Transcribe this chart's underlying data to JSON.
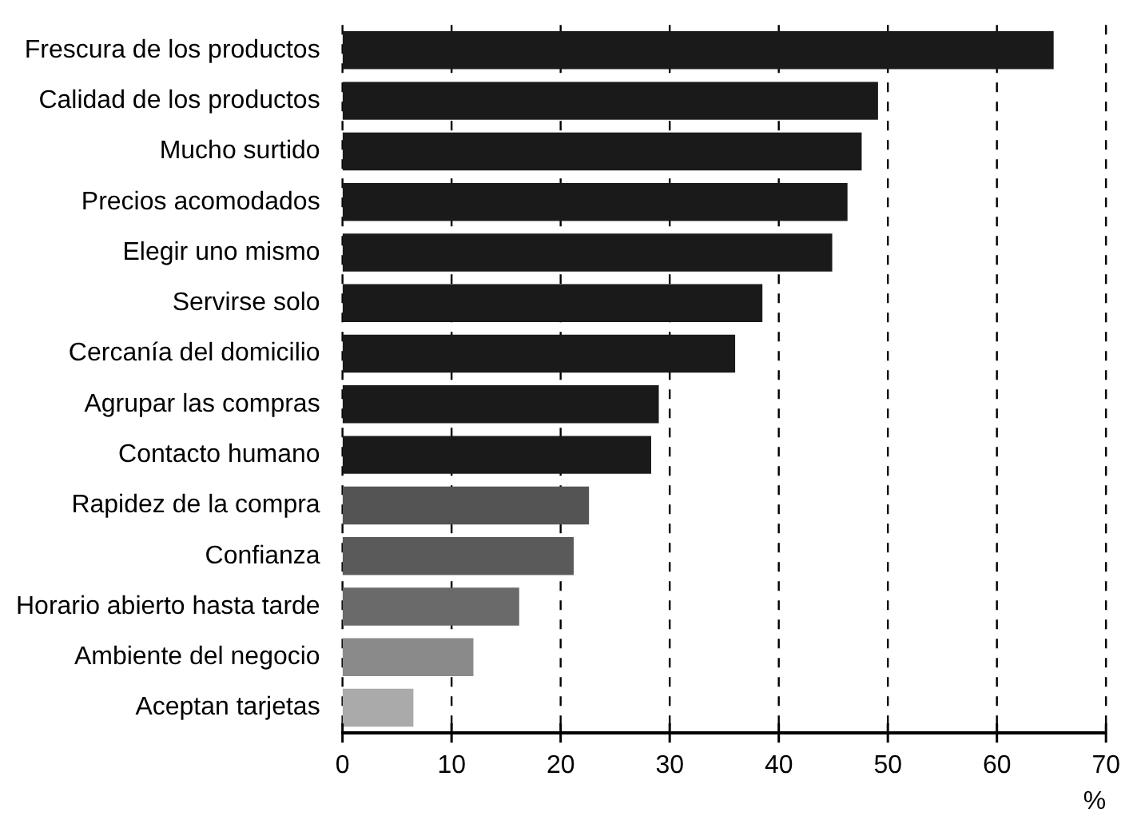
{
  "chart_data": {
    "type": "bar",
    "orientation": "horizontal",
    "xlabel": "%",
    "categories": [
      "Frescura de los productos",
      "Calidad de los productos",
      "Mucho surtido",
      "Precios acomodados",
      "Elegir uno mismo",
      "Servirse solo",
      "Cercanía del domicilio",
      "Agrupar las compras",
      "Contacto humano",
      "Rapidez de la compra",
      "Confianza",
      "Horario abierto hasta tarde",
      "Ambiente del negocio",
      "Aceptan tarjetas"
    ],
    "values": [
      65.2,
      49.1,
      47.6,
      46.3,
      44.9,
      38.5,
      36.0,
      29.0,
      28.3,
      22.6,
      21.2,
      16.2,
      12.0,
      6.5
    ],
    "colors": [
      "#1a1a1a",
      "#1a1a1a",
      "#1a1a1a",
      "#1a1a1a",
      "#1a1a1a",
      "#1a1a1a",
      "#1a1a1a",
      "#1a1a1a",
      "#1a1a1a",
      "#545454",
      "#5a5a5a",
      "#6a6a6a",
      "#8a8a8a",
      "#aaaaaa"
    ],
    "xlim": [
      0,
      70
    ],
    "xticks": [
      0,
      10,
      20,
      30,
      40,
      50,
      60,
      70
    ],
    "grid": "x",
    "legend": false
  }
}
